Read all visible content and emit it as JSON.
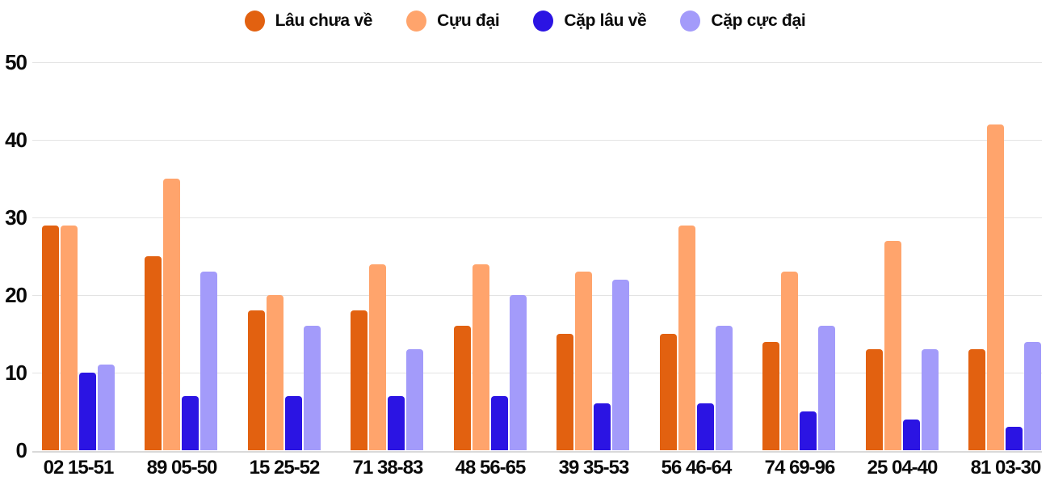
{
  "chart_data": {
    "type": "bar",
    "title": "",
    "xlabel": "",
    "ylabel": "",
    "categories": [
      "02 15-51",
      "89 05-50",
      "15 25-52",
      "71 38-83",
      "48 56-65",
      "39 35-53",
      "56 46-64",
      "74 69-96",
      "25 04-40",
      "81 03-30"
    ],
    "series": [
      {
        "name": "Lâu chưa về",
        "color": "#E26110",
        "values": [
          29,
          25,
          18,
          18,
          16,
          15,
          15,
          14,
          13,
          13
        ]
      },
      {
        "name": "Cựu đại",
        "color": "#FFA46C",
        "values": [
          29,
          35,
          20,
          24,
          24,
          23,
          29,
          23,
          27,
          42
        ]
      },
      {
        "name": "Cặp lâu về",
        "color": "#2B14E3",
        "values": [
          10,
          7,
          7,
          7,
          7,
          6,
          6,
          5,
          4,
          3
        ]
      },
      {
        "name": "Cặp cực đại",
        "color": "#A39BFA",
        "values": [
          11,
          23,
          16,
          13,
          20,
          22,
          16,
          16,
          13,
          14
        ]
      }
    ],
    "ylim": [
      0,
      50
    ],
    "yticks": [
      0,
      10,
      20,
      30,
      40,
      50
    ],
    "grid": true,
    "legend_position": "top"
  },
  "colors": {
    "grid": "#E3E3E3",
    "baseline": "#D9D9D9",
    "text": "#0A0A0A",
    "background": "#FFFFFF"
  }
}
